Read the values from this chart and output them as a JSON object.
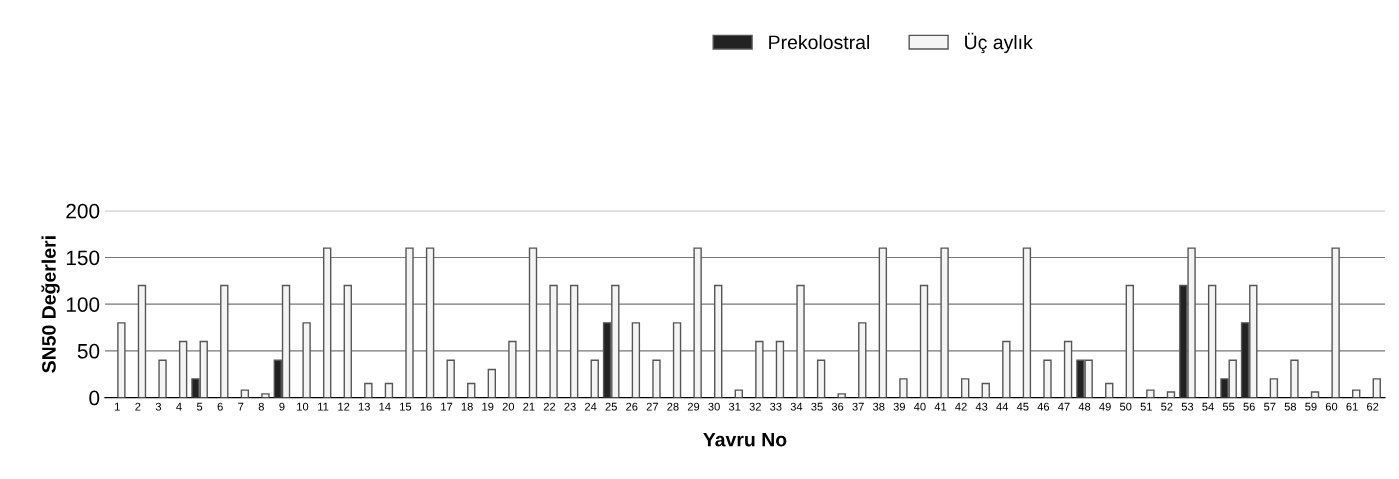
{
  "chart_data": {
    "type": "bar",
    "xlabel": "Yavru No",
    "ylabel": "SN50 Değerleri",
    "categories": [
      "1",
      "2",
      "3",
      "4",
      "5",
      "6",
      "7",
      "8",
      "9",
      "10",
      "11",
      "12",
      "13",
      "14",
      "15",
      "16",
      "17",
      "18",
      "19",
      "20",
      "21",
      "22",
      "23",
      "24",
      "25",
      "26",
      "27",
      "28",
      "29",
      "30",
      "31",
      "32",
      "33",
      "34",
      "35",
      "36",
      "37",
      "38",
      "39",
      "40",
      "41",
      "42",
      "43",
      "44",
      "45",
      "46",
      "47",
      "48",
      "49",
      "50",
      "51",
      "52",
      "53",
      "54",
      "55",
      "56",
      "57",
      "58",
      "59",
      "60",
      "61",
      "62"
    ],
    "series": [
      {
        "name": "Prekolostral",
        "color": "#222222",
        "values": [
          null,
          null,
          null,
          null,
          20,
          null,
          null,
          null,
          40,
          null,
          null,
          null,
          null,
          null,
          null,
          null,
          null,
          null,
          null,
          null,
          null,
          null,
          null,
          null,
          80,
          null,
          null,
          null,
          null,
          null,
          null,
          null,
          null,
          null,
          null,
          null,
          null,
          null,
          null,
          null,
          null,
          null,
          null,
          null,
          null,
          null,
          null,
          40,
          null,
          null,
          null,
          null,
          120,
          null,
          20,
          80,
          null,
          null,
          null,
          null,
          null,
          null
        ]
      },
      {
        "name": "Üç aylık",
        "color": "#f4f4f4",
        "values": [
          80,
          120,
          40,
          60,
          60,
          120,
          8,
          4,
          120,
          80,
          160,
          120,
          15,
          15,
          160,
          160,
          40,
          15,
          30,
          60,
          160,
          120,
          120,
          40,
          120,
          80,
          40,
          80,
          160,
          120,
          8,
          60,
          60,
          120,
          40,
          4,
          80,
          160,
          20,
          120,
          160,
          20,
          15,
          60,
          160,
          40,
          60,
          40,
          15,
          120,
          8,
          6,
          160,
          120,
          40,
          120,
          20,
          40,
          6,
          160,
          8,
          20
        ]
      }
    ],
    "ylim": [
      0,
      200
    ],
    "yticks": [
      0,
      50,
      100,
      150,
      200
    ],
    "grid": "y",
    "legend": "top"
  }
}
